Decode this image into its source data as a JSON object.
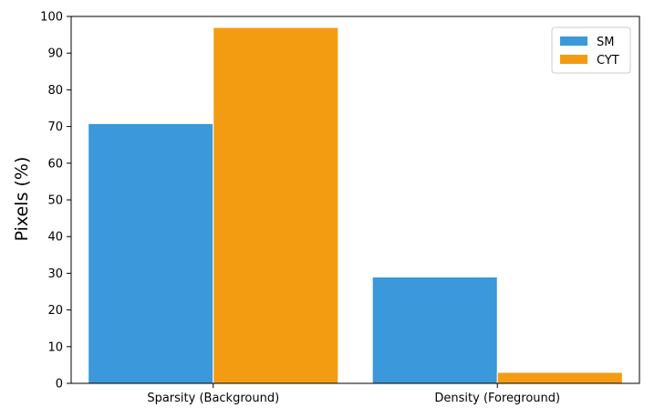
{
  "chart_data": {
    "type": "bar",
    "title": "",
    "xlabel": "",
    "ylabel": "Pixels (%)",
    "ylim": [
      0,
      100
    ],
    "yticks": [
      0,
      10,
      20,
      30,
      40,
      50,
      60,
      70,
      80,
      90,
      100
    ],
    "categories": [
      "Sparsity (Background)",
      "Density (Foreground)"
    ],
    "series": [
      {
        "name": "SM",
        "color": "#3a98db",
        "values": [
          70.8,
          29.0
        ]
      },
      {
        "name": "CYT",
        "color": "#f39c12",
        "values": [
          97.0,
          3.0
        ]
      }
    ],
    "grid": false,
    "legend": {
      "position": "top-right"
    }
  }
}
